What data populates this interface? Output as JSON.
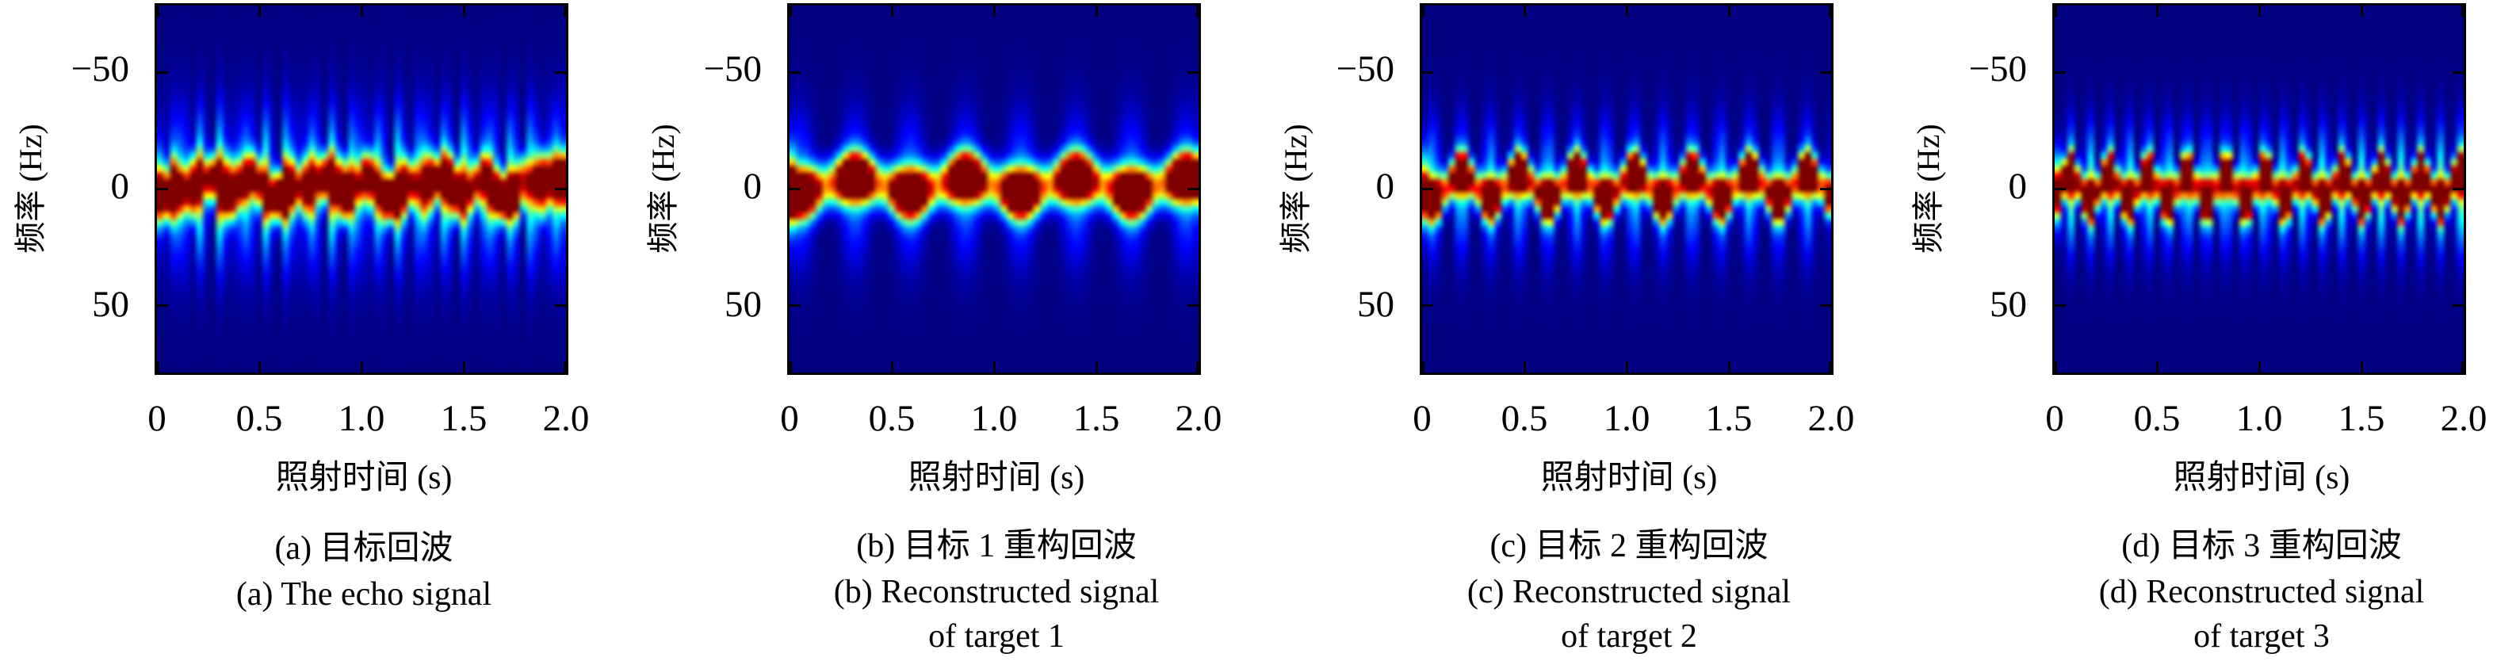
{
  "page": {
    "background": "#ffffff",
    "frame_color": "#000000",
    "plot_bg": "#00008f"
  },
  "figure": {
    "xlabel": "照射时间 (s)",
    "ylabel": "频率 (Hz)",
    "x_tick_labels": [
      "0",
      "0.5",
      "1.0",
      "1.5",
      "2.0"
    ],
    "y_tick_labels": [
      "−50",
      "0",
      "50"
    ],
    "x_tick_values": [
      0,
      0.5,
      1.0,
      1.5,
      2.0
    ],
    "y_tick_values": [
      -50,
      0,
      50
    ]
  },
  "chart_data": [
    {
      "type": "heatmap",
      "panel_id": "a",
      "caption_line1": "(a) 目标回波",
      "caption_line2": "(a) The echo signal",
      "xlabel": "照射时间 (s)",
      "ylabel": "频率 (Hz)",
      "x_range_s": [
        0,
        2
      ],
      "y_range_hz": [
        -79,
        79
      ],
      "colormap": "jet",
      "legend": "none",
      "grid": false,
      "model": {
        "grid": {
          "cols": 62,
          "rows": 55
        },
        "gain": 1.5,
        "edge_flash": true,
        "components": [
          {
            "weight": 0.62,
            "center_hz": -1.0,
            "doppler_amp_hz": 4.5,
            "mod_rate_hz": 1.85,
            "mod_phase": 0.99,
            "sigma_hz": 6.2,
            "blob_rate_hz": 3.7,
            "blob_phase": -1.16,
            "env_base": 0.7,
            "env_amp": 0.3
          },
          {
            "weight": 0.55,
            "center_hz": -1.0,
            "doppler_amp_hz": 5.5,
            "mod_rate_hz": 3.55,
            "mod_phase": 0.4,
            "sigma_hz": 6.0,
            "blob_rate_hz": 7.1,
            "blob_phase": -2.34,
            "env_base": 0.7,
            "env_amp": 0.3
          },
          {
            "weight": 0.5,
            "center_hz": -0.5,
            "doppler_amp_hz": 6.0,
            "mod_rate_hz": 5.25,
            "mod_phase": 2.2,
            "sigma_hz": 5.6,
            "blob_rate_hz": 10.5,
            "blob_phase": 1.27,
            "env_base": 0.72,
            "env_amp": 0.28
          }
        ],
        "irregularity": {
          "base": 0.8,
          "amp": 0.2,
          "rate1_hz": 2.9,
          "phase1": 0.3,
          "rate2_hz": 6.7,
          "phase2": 1.9
        },
        "pedestals": [
          {
            "weight": 0.26,
            "sigma_hz": 20,
            "stripe_rate_hz": 9.2,
            "stripe_phase": 0.5,
            "power": 2.0
          },
          {
            "weight": 0.1,
            "sigma_hz": 25,
            "stripe_rate_hz": 18.5,
            "stripe_phase": 2.0,
            "power": 2.0
          }
        ]
      }
    },
    {
      "type": "heatmap",
      "panel_id": "b",
      "caption_line1": "(b) 目标 1 重构回波",
      "caption_line2": "(b) Reconstructed signal",
      "caption_line3": "of target 1",
      "xlabel": "照射时间 (s)",
      "ylabel": "频率 (Hz)",
      "x_range_s": [
        0,
        2
      ],
      "y_range_hz": [
        -79,
        79
      ],
      "colormap": "jet",
      "legend": "none",
      "grid": false,
      "model": {
        "grid": {
          "cols": 62,
          "rows": 55
        },
        "gain": 2.2,
        "edge_flash": true,
        "components": [
          {
            "weight": 1.0,
            "center_hz": -1.5,
            "doppler_amp_hz": 3.5,
            "mod_rate_hz": 1.85,
            "mod_phase": 0.99,
            "sigma_hz": 6.2,
            "blob_rate_hz": 3.7,
            "blob_phase": -1.16,
            "env_base": 0.66,
            "env_amp": 0.34
          }
        ],
        "irregularity": null,
        "pedestals": [
          {
            "weight": 0.1,
            "sigma_hz": 20,
            "stripe_rate_hz": 3.7,
            "stripe_phase": -1.16,
            "power": 1.6
          }
        ]
      }
    },
    {
      "type": "heatmap",
      "panel_id": "c",
      "caption_line1": "(c) 目标 2 重构回波",
      "caption_line2": "(c) Reconstructed signal",
      "caption_line3": "of target 2",
      "xlabel": "照射时间 (s)",
      "ylabel": "频率 (Hz)",
      "x_range_s": [
        0,
        2
      ],
      "y_range_hz": [
        -79,
        79
      ],
      "colormap": "jet",
      "legend": "none",
      "grid": false,
      "model": {
        "grid": {
          "cols": 62,
          "rows": 55
        },
        "gain": 2.2,
        "edge_flash": true,
        "components": [
          {
            "weight": 1.0,
            "center_hz": -1.0,
            "doppler_amp_hz": 6.0,
            "mod_rate_hz": 3.55,
            "mod_phase": 0.4,
            "sigma_hz": 5.2,
            "blob_rate_hz": 7.1,
            "blob_phase": -2.34,
            "env_base": 0.68,
            "env_amp": 0.32
          }
        ],
        "irregularity": null,
        "pedestals": [
          {
            "weight": 0.15,
            "sigma_hz": 18,
            "stripe_rate_hz": 7.1,
            "stripe_phase": -2.34,
            "power": 1.8
          }
        ]
      }
    },
    {
      "type": "heatmap",
      "panel_id": "d",
      "caption_line1": "(d) 目标 3 重构回波",
      "caption_line2": "(d) Reconstructed signal",
      "caption_line3": "of target 3",
      "xlabel": "照射时间 (s)",
      "ylabel": "频率 (Hz)",
      "x_range_s": [
        0,
        2
      ],
      "y_range_hz": [
        -79,
        79
      ],
      "colormap": "jet",
      "legend": "none",
      "grid": false,
      "model": {
        "grid": {
          "cols": 62,
          "rows": 55
        },
        "gain": 2.3,
        "edge_flash": true,
        "components": [
          {
            "weight": 1.0,
            "center_hz": -0.5,
            "doppler_amp_hz": 6.0,
            "mod_rate_hz": 5.25,
            "mod_phase": 2.2,
            "sigma_hz": 5.0,
            "blob_rate_hz": 10.5,
            "blob_phase": 1.27,
            "env_base": 0.7,
            "env_amp": 0.3
          }
        ],
        "irregularity": null,
        "pedestals": [
          {
            "weight": 0.2,
            "sigma_hz": 17,
            "stripe_rate_hz": 10.5,
            "stripe_phase": 1.27,
            "power": 1.8
          }
        ]
      }
    }
  ]
}
